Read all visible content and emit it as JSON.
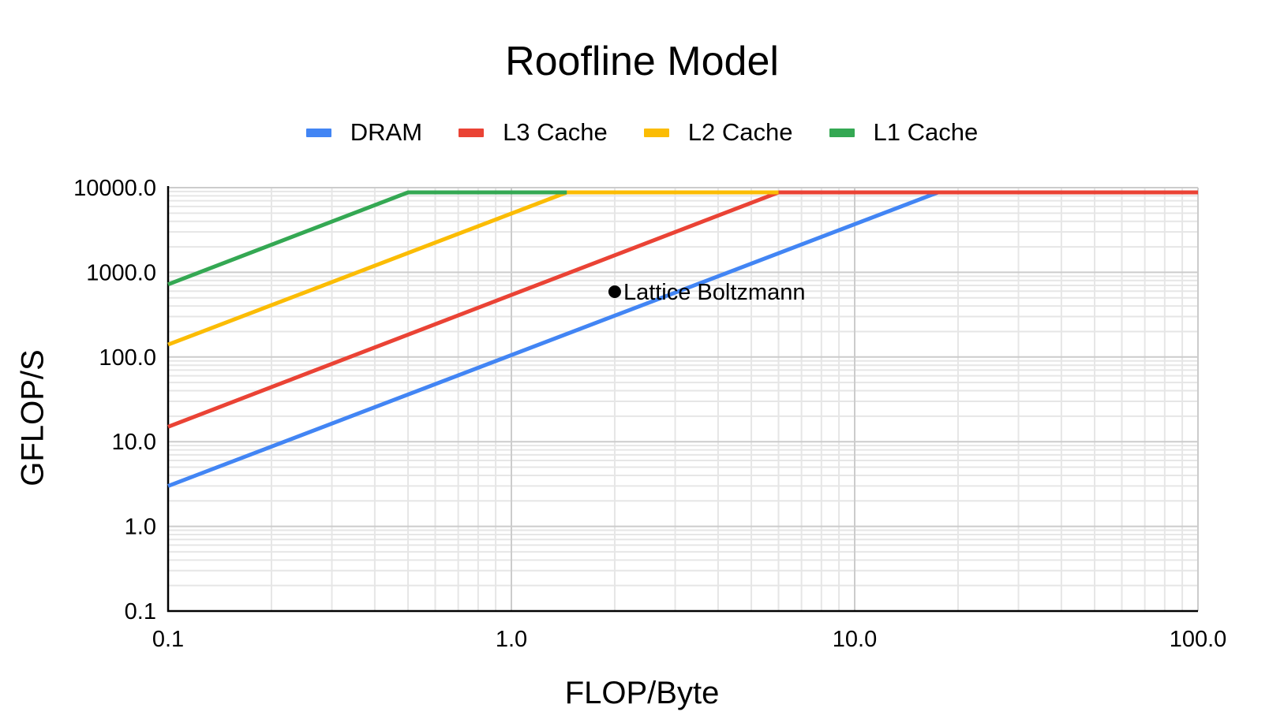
{
  "chart_data": {
    "type": "line",
    "title": "Roofline Model",
    "xlabel": "FLOP/Byte",
    "ylabel": "GFLOP/S",
    "xscale": "log",
    "yscale": "log",
    "xlim": [
      0.1,
      100
    ],
    "ylim": [
      0.1,
      10000
    ],
    "grid": true,
    "legend_position": "top",
    "xticks": [
      "0.1",
      "1.0",
      "10.0",
      "100.0"
    ],
    "yticks": [
      "0.1",
      "1.0",
      "10.0",
      "100.0",
      "1000.0",
      "10000.0"
    ],
    "series": [
      {
        "name": "DRAM",
        "color": "#4285f4",
        "x": [
          0.1,
          17.5,
          100
        ],
        "y": [
          3,
          8800,
          8800
        ]
      },
      {
        "name": "L3 Cache",
        "color": "#ea4335",
        "x": [
          0.1,
          6,
          100
        ],
        "y": [
          15,
          8800,
          8800
        ]
      },
      {
        "name": "L2 Cache",
        "color": "#fbbc04",
        "x": [
          0.1,
          1.45,
          6
        ],
        "y": [
          140,
          8800,
          8800
        ]
      },
      {
        "name": "L1 Cache",
        "color": "#34a853",
        "x": [
          0.1,
          0.5,
          1.45
        ],
        "y": [
          720,
          8800,
          8800
        ]
      }
    ],
    "annotations": [
      {
        "label": "Lattice Boltzmann",
        "x": 2.0,
        "y": 590,
        "color": "#000000"
      }
    ]
  }
}
